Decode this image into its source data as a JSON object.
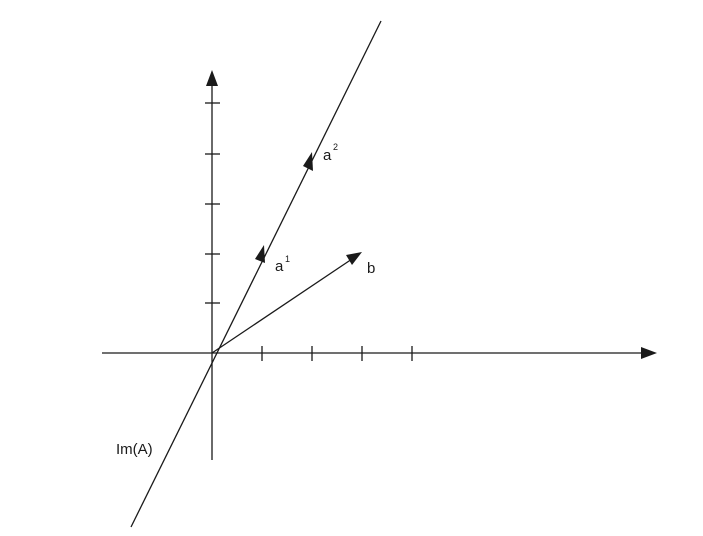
{
  "diagram": {
    "labels": {
      "a1_base": "a",
      "a1_sup": "1",
      "a2_base": "a",
      "a2_sup": "2",
      "b": "b",
      "im_a": "Im(A)"
    }
  }
}
